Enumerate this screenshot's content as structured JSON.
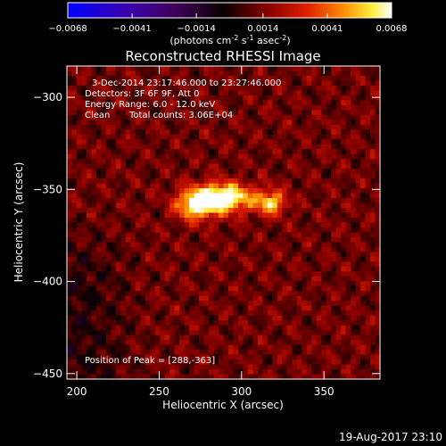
{
  "chart_data": {
    "type": "heatmap",
    "title": "Reconstructed RHESSI Image",
    "xlabel": "Heliocentric X (arcsec)",
    "ylabel": "Heliocentric Y (arcsec)",
    "xlim": [
      194,
      384
    ],
    "ylim": [
      -453,
      -283
    ],
    "x_ticks": [
      200,
      250,
      300,
      350
    ],
    "y_ticks": [
      -300,
      -350,
      -400,
      -450
    ],
    "colorbar": {
      "min": -0.0068,
      "max": 0.0068,
      "ticks": [
        "-0.0068",
        "-0.0041",
        "-0.0014",
        "0.0014",
        "0.0041",
        "0.0068"
      ],
      "unit_label": "(photons cm",
      "unit_parts": [
        "(photons cm",
        "-2",
        " s",
        "-1",
        " asec",
        "-2",
        ")"
      ],
      "colormap": "rhessi (blue-purple-black-red-yellow-white)"
    },
    "annotations": [
      "3-Dec-2014 23:17:46.000 to 23:27:46.000",
      "Detectors: 3F 6F 9F, Att 0",
      "Energy Range: 6.0 - 12.0 keV",
      "Clean",
      "Total counts: 3.06E+04",
      "Position of Peak = [288,-363]"
    ],
    "peak": {
      "x": 288,
      "y": -363
    },
    "sources": [
      {
        "x": 288,
        "y": -363,
        "sx": 13,
        "sy": 6,
        "amp": 0.0068
      },
      {
        "x": 318,
        "y": -366,
        "sx": 6,
        "sy": 5,
        "amp": 0.0045
      },
      {
        "x": 272,
        "y": -368,
        "sx": 8,
        "sy": 6,
        "amp": 0.0045
      }
    ]
  },
  "footer": {
    "timestamp": "19-Aug-2017 23:10"
  }
}
